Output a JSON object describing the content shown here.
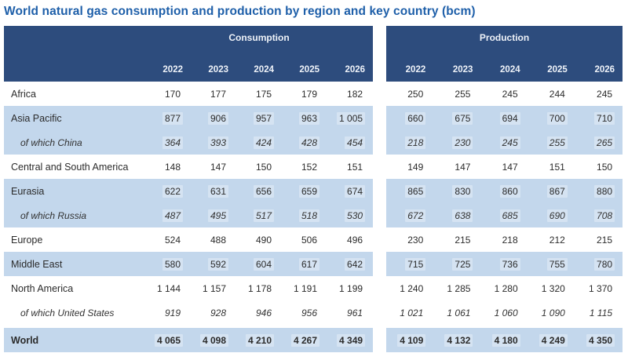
{
  "title": "World natural gas consumption and production by region and key country (bcm)",
  "header": {
    "consumption_label": "Consumption",
    "production_label": "Production",
    "years": [
      "2022",
      "2023",
      "2024",
      "2025",
      "2026"
    ]
  },
  "colors": {
    "header_navy": "#2d4c7d",
    "row_light_blue": "#c3d7ec",
    "title_blue": "#1e5fa9",
    "body_text": "#2b2b2b"
  },
  "chart_data": {
    "type": "table",
    "title": "World natural gas consumption and production by region and key country (bcm)",
    "unit": "bcm",
    "column_groups": [
      "Consumption",
      "Production"
    ],
    "years": [
      2022,
      2023,
      2024,
      2025,
      2026
    ],
    "rows": [
      {
        "label": "Africa",
        "sub": false,
        "shaded": false,
        "bold": false,
        "world": false,
        "consumption": [
          170,
          177,
          175,
          179,
          182
        ],
        "production": [
          250,
          255,
          245,
          244,
          245
        ]
      },
      {
        "label": "Asia Pacific",
        "sub": false,
        "shaded": true,
        "bold": false,
        "world": false,
        "consumption": [
          877,
          906,
          957,
          963,
          1005
        ],
        "production": [
          660,
          675,
          694,
          700,
          710
        ]
      },
      {
        "label": "of which China",
        "sub": true,
        "shaded": true,
        "bold": false,
        "world": false,
        "consumption": [
          364,
          393,
          424,
          428,
          454
        ],
        "production": [
          218,
          230,
          245,
          255,
          265
        ]
      },
      {
        "label": "Central and South America",
        "sub": false,
        "shaded": false,
        "bold": false,
        "world": false,
        "consumption": [
          148,
          147,
          150,
          152,
          151
        ],
        "production": [
          149,
          147,
          147,
          151,
          150
        ]
      },
      {
        "label": "Eurasia",
        "sub": false,
        "shaded": true,
        "bold": false,
        "world": false,
        "consumption": [
          622,
          631,
          656,
          659,
          674
        ],
        "production": [
          865,
          830,
          860,
          867,
          880
        ]
      },
      {
        "label": "of which Russia",
        "sub": true,
        "shaded": true,
        "bold": false,
        "world": false,
        "consumption": [
          487,
          495,
          517,
          518,
          530
        ],
        "production": [
          672,
          638,
          685,
          690,
          708
        ]
      },
      {
        "label": "Europe",
        "sub": false,
        "shaded": false,
        "bold": false,
        "world": false,
        "consumption": [
          524,
          488,
          490,
          506,
          496
        ],
        "production": [
          230,
          215,
          218,
          212,
          215
        ]
      },
      {
        "label": "Middle East",
        "sub": false,
        "shaded": true,
        "bold": false,
        "world": false,
        "consumption": [
          580,
          592,
          604,
          617,
          642
        ],
        "production": [
          715,
          725,
          736,
          755,
          780
        ]
      },
      {
        "label": "North America",
        "sub": false,
        "shaded": false,
        "bold": false,
        "world": false,
        "consumption": [
          1144,
          1157,
          1178,
          1191,
          1199
        ],
        "production": [
          1240,
          1285,
          1280,
          1320,
          1370
        ]
      },
      {
        "label": "of which United States",
        "sub": true,
        "shaded": false,
        "bold": false,
        "world": false,
        "consumption": [
          919,
          928,
          946,
          956,
          961
        ],
        "production": [
          1021,
          1061,
          1060,
          1090,
          1115
        ]
      },
      {
        "label": "World",
        "sub": false,
        "shaded": true,
        "bold": true,
        "world": true,
        "consumption": [
          4065,
          4098,
          4210,
          4267,
          4349
        ],
        "production": [
          4109,
          4132,
          4180,
          4249,
          4350
        ]
      }
    ]
  }
}
